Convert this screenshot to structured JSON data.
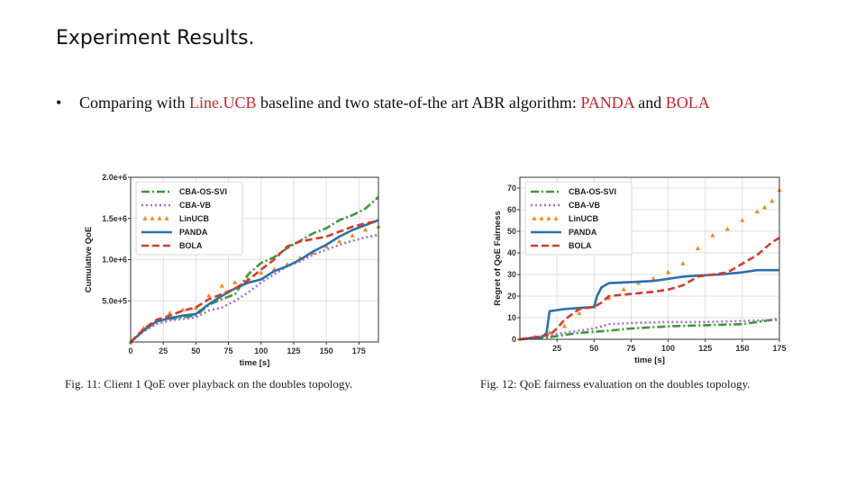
{
  "slide": {
    "title": "Experiment Results.",
    "bullet_marker": "•",
    "bullet_parts": [
      "Comparing with ",
      "Line.UCB",
      " baseline and two state-of-the art ABR algorithm: ",
      "PANDA",
      " and ",
      "BOLA"
    ],
    "highlight_color": "#c0272d"
  },
  "captions": {
    "fig11": "Fig. 11: Client 1 QoE over playback on the doubles topology.",
    "fig12": "Fig. 12: QoE fairness evaluation on the doubles topology."
  },
  "chart_data": [
    {
      "type": "line",
      "title": "",
      "xlabel": "time [s]",
      "ylabel": "Cumulative QoE",
      "xlim": [
        0,
        190
      ],
      "ylim": [
        0,
        2000000
      ],
      "xticks": [
        0,
        25,
        50,
        75,
        100,
        125,
        150,
        175
      ],
      "xtick_labels": [
        "0",
        "25",
        "50",
        "75",
        "100",
        "125",
        "150",
        "175"
      ],
      "yticks": [
        500000,
        1000000,
        1500000,
        2000000
      ],
      "ytick_labels": [
        "5.0e+5",
        "1.0e+6",
        "1.5e+6",
        "2.0e+6"
      ],
      "grid": true,
      "legend_position": "top-left",
      "series": [
        {
          "name": "CBA-OS-SVI",
          "color": "#3a9a3a",
          "style": "dashdot",
          "x": [
            0,
            10,
            20,
            30,
            40,
            50,
            60,
            70,
            80,
            90,
            100,
            110,
            120,
            130,
            140,
            150,
            160,
            170,
            180,
            190
          ],
          "y": [
            0,
            150000,
            250000,
            280000,
            300000,
            320000,
            450000,
            520000,
            580000,
            820000,
            960000,
            1030000,
            1140000,
            1230000,
            1320000,
            1380000,
            1480000,
            1540000,
            1620000,
            1760000
          ]
        },
        {
          "name": "CBA-VB",
          "color": "#9b72cf",
          "style": "dotted",
          "x": [
            0,
            10,
            20,
            30,
            40,
            50,
            60,
            70,
            80,
            90,
            100,
            110,
            120,
            130,
            140,
            150,
            160,
            170,
            180,
            190
          ],
          "y": [
            0,
            130000,
            220000,
            260000,
            280000,
            300000,
            380000,
            420000,
            500000,
            600000,
            720000,
            820000,
            920000,
            980000,
            1060000,
            1120000,
            1180000,
            1230000,
            1270000,
            1300000
          ]
        },
        {
          "name": "LinUCB",
          "color": "#ee8a1a",
          "style": "triangles",
          "x": [
            0,
            10,
            20,
            30,
            40,
            50,
            60,
            70,
            80,
            90,
            100,
            110,
            120,
            130,
            140,
            150,
            160,
            170,
            180,
            190
          ],
          "y": [
            0,
            170000,
            260000,
            350000,
            390000,
            410000,
            560000,
            680000,
            720000,
            760000,
            840000,
            880000,
            940000,
            1020000,
            1080000,
            1160000,
            1220000,
            1290000,
            1360000,
            1400000
          ]
        },
        {
          "name": "PANDA",
          "color": "#2e6fac",
          "style": "solid",
          "x": [
            0,
            10,
            20,
            30,
            40,
            50,
            60,
            70,
            80,
            90,
            100,
            110,
            120,
            130,
            140,
            150,
            160,
            170,
            180,
            190
          ],
          "y": [
            0,
            140000,
            250000,
            290000,
            320000,
            340000,
            460000,
            560000,
            650000,
            720000,
            760000,
            860000,
            920000,
            1000000,
            1100000,
            1180000,
            1280000,
            1360000,
            1420000,
            1480000
          ]
        },
        {
          "name": "BOLA",
          "color": "#d23c2f",
          "style": "dashed",
          "x": [
            0,
            10,
            20,
            30,
            40,
            50,
            60,
            70,
            80,
            90,
            100,
            110,
            120,
            130,
            140,
            150,
            160,
            170,
            180,
            190
          ],
          "y": [
            0,
            160000,
            270000,
            320000,
            380000,
            420000,
            520000,
            580000,
            650000,
            750000,
            880000,
            1000000,
            1160000,
            1220000,
            1250000,
            1280000,
            1340000,
            1400000,
            1440000,
            1470000
          ]
        }
      ]
    },
    {
      "type": "line",
      "title": "",
      "xlabel": "time [s]",
      "ylabel": "Regret of QoE Fairness",
      "xlim": [
        0,
        175
      ],
      "ylim": [
        0,
        75
      ],
      "xticks": [
        25,
        50,
        75,
        100,
        125,
        150,
        175
      ],
      "xtick_labels": [
        "25",
        "50",
        "75",
        "100",
        "125",
        "150",
        "175"
      ],
      "yticks": [
        0,
        10,
        20,
        30,
        40,
        50,
        60,
        70
      ],
      "ytick_labels": [
        "0",
        "10",
        "20",
        "30",
        "40",
        "50",
        "60",
        "70"
      ],
      "grid": true,
      "legend_position": "top-left",
      "series": [
        {
          "name": "CBA-OS-SVI",
          "color": "#3a9a3a",
          "style": "dashdot",
          "x": [
            0,
            10,
            20,
            30,
            40,
            50,
            60,
            75,
            100,
            125,
            150,
            160,
            175
          ],
          "y": [
            0,
            0.5,
            1,
            2,
            3,
            3.5,
            4,
            5,
            6,
            6.5,
            7,
            8,
            9.5
          ]
        },
        {
          "name": "CBA-VB",
          "color": "#9b72cf",
          "style": "dotted",
          "x": [
            0,
            10,
            20,
            30,
            40,
            50,
            55,
            60,
            75,
            100,
            125,
            150,
            175
          ],
          "y": [
            0,
            1,
            2,
            3,
            4,
            5,
            6,
            7,
            7.5,
            8,
            8,
            8.5,
            9
          ]
        },
        {
          "name": "LinUCB",
          "color": "#ee8a1a",
          "style": "triangles",
          "x": [
            0,
            10,
            20,
            30,
            40,
            50,
            60,
            70,
            80,
            90,
            100,
            110,
            120,
            130,
            140,
            150,
            160,
            165,
            170,
            175
          ],
          "y": [
            0,
            1,
            3,
            6,
            12,
            15,
            19,
            23,
            26,
            28,
            31,
            35,
            42,
            48,
            51,
            55,
            59,
            61,
            64,
            69
          ]
        },
        {
          "name": "PANDA",
          "color": "#2e6fac",
          "style": "solid",
          "x": [
            0,
            15,
            18,
            20,
            30,
            40,
            50,
            52,
            55,
            60,
            75,
            90,
            100,
            110,
            120,
            135,
            150,
            160,
            175
          ],
          "y": [
            0,
            1,
            3,
            13,
            14,
            14.5,
            15,
            20,
            24,
            26,
            26.5,
            27,
            28,
            29,
            29.5,
            30,
            31,
            32,
            32
          ]
        },
        {
          "name": "BOLA",
          "color": "#d23c2f",
          "style": "dashed",
          "x": [
            0,
            10,
            20,
            25,
            30,
            40,
            50,
            55,
            60,
            75,
            90,
            100,
            110,
            120,
            130,
            140,
            150,
            160,
            170,
            175
          ],
          "y": [
            0,
            1,
            2,
            5,
            9,
            14,
            15,
            17,
            20,
            21,
            22,
            23,
            25,
            29,
            30,
            31,
            35,
            39,
            45,
            47
          ]
        }
      ]
    }
  ]
}
